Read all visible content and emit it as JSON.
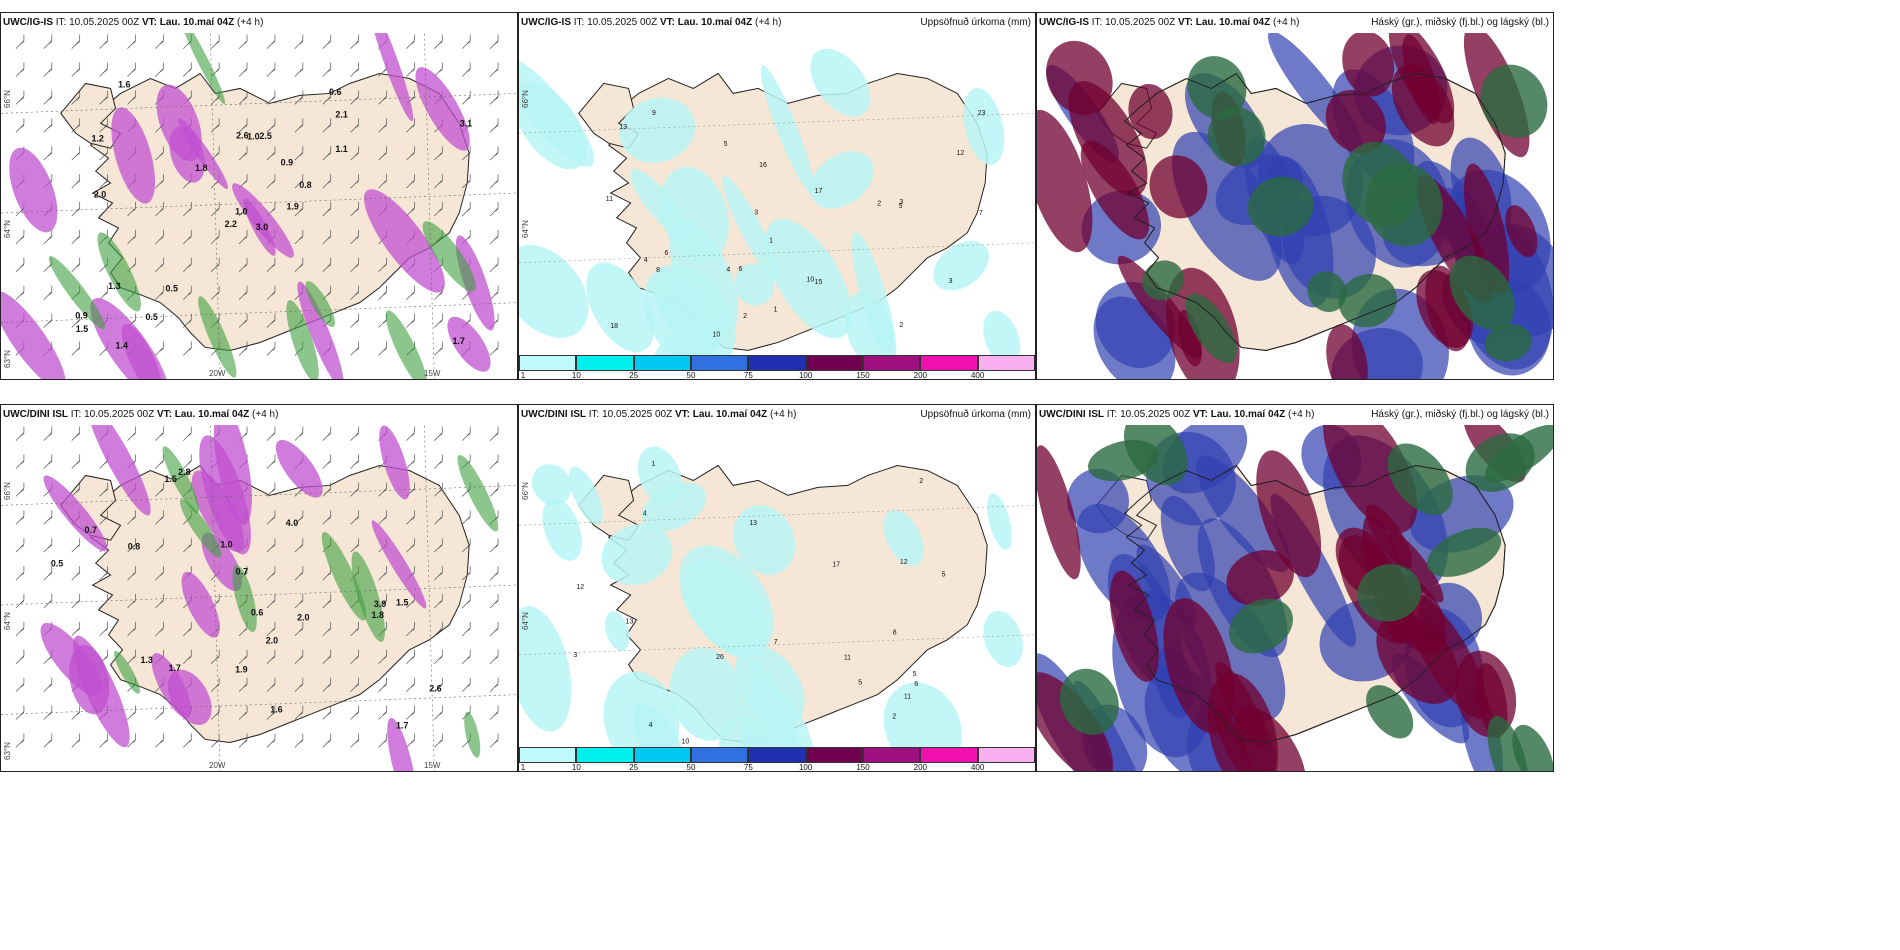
{
  "panels": [
    {
      "model": "UWC/IG-IS",
      "it_label": "IT:",
      "it_value": "10.05.2025 00Z",
      "vt_label": "VT:",
      "vt_value": "Lau. 10.maí 04Z",
      "lead": "(+4 h)",
      "right_title": "",
      "type": "wind",
      "lat_labels": [
        "66°N",
        "64°N",
        "63°N"
      ],
      "lon_labels": [
        "20W",
        "15W"
      ],
      "values": [
        "3.0",
        "1.2",
        "1.0",
        "0.9",
        "0.8",
        "0.5",
        "0.6",
        "2.5",
        "2.1",
        "1.9",
        "1.6",
        "1.7",
        "2.0",
        "3.1",
        "2.2",
        "1.1",
        "1.4",
        "2.6",
        "0.9",
        "1.3",
        "1.8",
        "1.5",
        "0.5",
        "1.0"
      ]
    },
    {
      "model": "UWC/IG-IS",
      "it_label": "IT:",
      "it_value": "10.05.2025 00Z",
      "vt_label": "VT:",
      "vt_value": "Lau. 10.maí 04Z",
      "lead": "(+4 h)",
      "right_title": "Uppsöfnuð úrkoma (mm)",
      "type": "precip",
      "lat_labels": [
        "66°N",
        "64°N"
      ],
      "lon_labels": [],
      "values": [
        "2",
        "2",
        "3",
        "1",
        "1",
        "5",
        "3",
        "4",
        "6",
        "7",
        "8",
        "9",
        "10",
        "12",
        "18",
        "23",
        "15",
        "16",
        "11",
        "17",
        "10",
        "13",
        "6",
        "5",
        "4",
        "3",
        "2"
      ]
    },
    {
      "model": "UWC/IG-IS",
      "it_label": "IT:",
      "it_value": "10.05.2025 00Z",
      "vt_label": "VT:",
      "vt_value": "Lau. 10.maí 04Z",
      "lead": "(+4 h)",
      "right_title": "Háský (gr.), miðský (fj.bl.) og lágský (bl.)",
      "type": "cloud",
      "lat_labels": [],
      "lon_labels": [],
      "values": []
    },
    {
      "model": "UWC/DINI ISL",
      "it_label": "IT:",
      "it_value": "10.05.2025 00Z",
      "vt_label": "VT:",
      "vt_value": "Lau. 10.maí 04Z",
      "lead": "(+4 h)",
      "right_title": "",
      "type": "wind",
      "lat_labels": [
        "66°N",
        "64°N",
        "63°N"
      ],
      "lon_labels": [
        "20W",
        "15W"
      ],
      "values": [
        "0.8",
        "0.7",
        "0.7",
        "1.5",
        "1.7",
        "4.0",
        "0.5",
        "2.0",
        "2.6",
        "1.8",
        "2.8",
        "3.9",
        "1.7",
        "1.5",
        "2.0",
        "1.6",
        "1.0",
        "0.6",
        "1.3",
        "1.9"
      ]
    },
    {
      "model": "UWC/DINI ISL",
      "it_label": "IT:",
      "it_value": "10.05.2025 00Z",
      "vt_label": "VT:",
      "vt_value": "Lau. 10.maí 04Z",
      "lead": "(+4 h)",
      "right_title": "Uppsöfnuð úrkoma (mm)",
      "type": "precip",
      "lat_labels": [
        "66°N",
        "64°N"
      ],
      "lon_labels": [],
      "values": [
        "13",
        "2",
        "12",
        "5",
        "4",
        "11",
        "6",
        "10",
        "17",
        "13",
        "26",
        "3",
        "12",
        "8",
        "1",
        "5",
        "2",
        "7",
        "11",
        "5",
        "4"
      ]
    },
    {
      "model": "UWC/DINI ISL",
      "it_label": "IT:",
      "it_value": "10.05.2025 00Z",
      "vt_label": "VT:",
      "vt_value": "Lau. 10.maí 04Z",
      "lead": "(+4 h)",
      "right_title": "Háský (gr.), miðský (fj.bl.) og lágský (bl.)",
      "type": "cloud",
      "lat_labels": [],
      "lon_labels": [],
      "values": []
    }
  ],
  "colorbar": {
    "labels": [
      "1",
      "10",
      "25",
      "50",
      "75",
      "100",
      "150",
      "200",
      "400"
    ],
    "colors": [
      "#bff9f9",
      "#00f0f0",
      "#00c8f0",
      "#3070e0",
      "#2030b0",
      "#700050",
      "#a01080",
      "#f010b0",
      "#f8b0f0"
    ]
  },
  "colors": {
    "land": "#f5e6d6",
    "precip_light": "#b8f5f5",
    "wind_magenta": "#c050d0",
    "wind_green": "#40a040",
    "cloud_high": "#2a6a40",
    "cloud_mid": "#700030",
    "cloud_low": "#3040b0"
  }
}
